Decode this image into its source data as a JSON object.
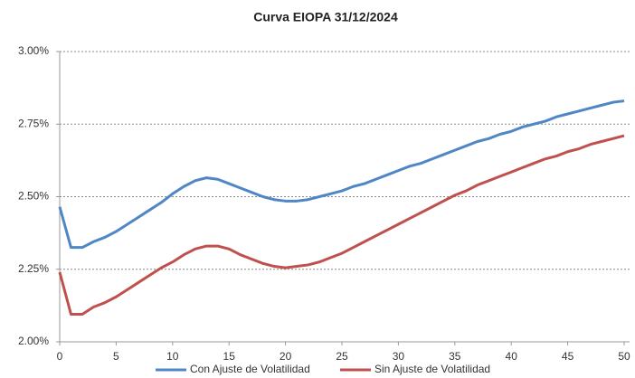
{
  "chart_data": {
    "type": "line",
    "title": "Curva EIOPA 31/12/2024",
    "x": [
      0,
      1,
      2,
      3,
      4,
      5,
      6,
      7,
      8,
      9,
      10,
      11,
      12,
      13,
      14,
      15,
      16,
      17,
      18,
      19,
      20,
      21,
      22,
      23,
      24,
      25,
      26,
      27,
      28,
      29,
      30,
      31,
      32,
      33,
      34,
      35,
      36,
      37,
      38,
      39,
      40,
      41,
      42,
      43,
      44,
      45,
      46,
      47,
      48,
      49,
      50
    ],
    "series": [
      {
        "name": "Con Ajuste de Volatilidad",
        "color": "#4f86c6",
        "values": [
          2.465,
          2.325,
          2.325,
          2.345,
          2.36,
          2.38,
          2.405,
          2.43,
          2.455,
          2.48,
          2.51,
          2.535,
          2.555,
          2.565,
          2.56,
          2.545,
          2.53,
          2.515,
          2.5,
          2.49,
          2.485,
          2.485,
          2.49,
          2.5,
          2.51,
          2.52,
          2.535,
          2.545,
          2.56,
          2.575,
          2.59,
          2.605,
          2.615,
          2.63,
          2.645,
          2.66,
          2.675,
          2.69,
          2.7,
          2.715,
          2.725,
          2.74,
          2.75,
          2.76,
          2.775,
          2.785,
          2.795,
          2.805,
          2.815,
          2.825,
          2.83
        ]
      },
      {
        "name": "Sin Ajuste de Volatilidad",
        "color": "#c0504d",
        "values": [
          2.24,
          2.095,
          2.095,
          2.12,
          2.135,
          2.155,
          2.18,
          2.205,
          2.23,
          2.255,
          2.275,
          2.3,
          2.32,
          2.33,
          2.33,
          2.32,
          2.3,
          2.285,
          2.27,
          2.26,
          2.255,
          2.26,
          2.265,
          2.275,
          2.29,
          2.305,
          2.325,
          2.345,
          2.365,
          2.385,
          2.405,
          2.425,
          2.445,
          2.465,
          2.485,
          2.505,
          2.52,
          2.54,
          2.555,
          2.57,
          2.585,
          2.6,
          2.615,
          2.63,
          2.64,
          2.655,
          2.665,
          2.68,
          2.69,
          2.7,
          2.71
        ]
      }
    ],
    "xlim": [
      0,
      50
    ],
    "xticks": [
      0,
      5,
      10,
      15,
      20,
      25,
      30,
      35,
      40,
      45,
      50
    ],
    "ylim": [
      2,
      3
    ],
    "yticks": [
      {
        "value": 2,
        "label": "2.00%"
      },
      {
        "value": 2.25,
        "label": "2.25%"
      },
      {
        "value": 2.5,
        "label": "2.50%"
      },
      {
        "value": 2.75,
        "label": "2.75%"
      },
      {
        "value": 3,
        "label": "3.00%"
      }
    ],
    "grid": true,
    "legend": "bottom"
  }
}
